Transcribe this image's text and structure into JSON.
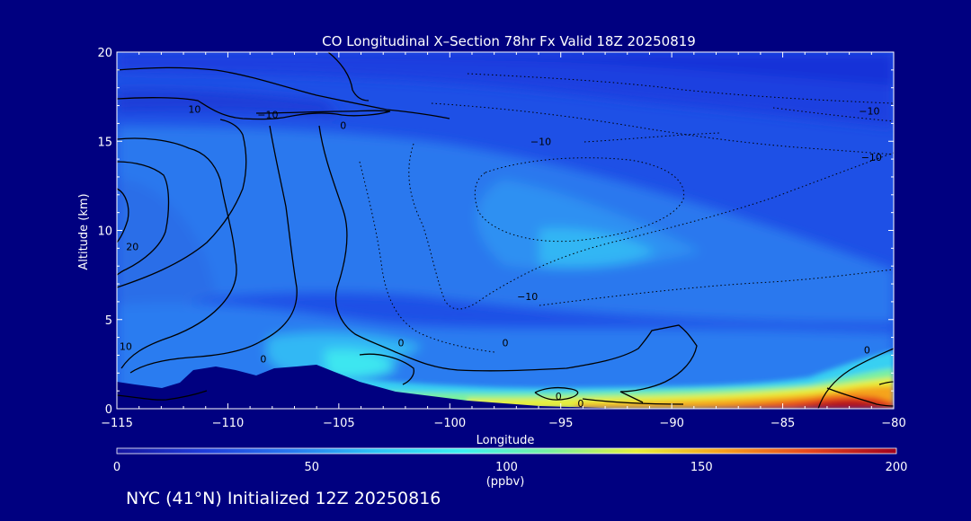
{
  "chart_data": {
    "type": "heatmap",
    "title": "CO Longitudinal X–Section 78hr  Fx Valid 18Z 20250819",
    "xlabel": "Longitude",
    "ylabel": "Altitude (km)",
    "xlim": [
      -115,
      -80
    ],
    "ylim": [
      0,
      20
    ],
    "x_ticks": [
      "−115",
      "−110",
      "−105",
      "−100",
      "−95",
      "−90",
      "−85",
      "−80"
    ],
    "x_tick_values": [
      -115,
      -110,
      -105,
      -100,
      -95,
      -90,
      -85,
      -80
    ],
    "y_ticks": [
      "0",
      "5",
      "10",
      "15",
      "20"
    ],
    "y_tick_values": [
      0,
      5,
      10,
      15,
      20
    ],
    "colorbar": {
      "ticks": [
        "0",
        "50",
        "100",
        "150",
        "200"
      ],
      "tick_values": [
        0,
        50,
        100,
        150,
        200
      ],
      "range": [
        0,
        200
      ],
      "label": "(ppbv)",
      "colors": [
        "#1414a0",
        "#1e3cdc",
        "#2878f0",
        "#2ec4f5",
        "#3cf0f0",
        "#78f0a0",
        "#e6f03c",
        "#f5a01e",
        "#e6461e",
        "#a0001e"
      ]
    },
    "contour_labels": [
      {
        "text": "10",
        "lon": -111.5,
        "alt": 16.8
      },
      {
        "text": "−10",
        "lon": -108.2,
        "alt": 16.5
      },
      {
        "text": "0",
        "lon": -104.8,
        "alt": 15.9
      },
      {
        "text": "−10",
        "lon": -95.9,
        "alt": 15.0
      },
      {
        "text": "−10",
        "lon": -81.0,
        "alt": 14.1
      },
      {
        "text": "−10",
        "lon": -81.1,
        "alt": 16.7
      },
      {
        "text": "20",
        "lon": -114.3,
        "alt": 9.1
      },
      {
        "text": "−10",
        "lon": -96.5,
        "alt": 6.3
      },
      {
        "text": "0",
        "lon": -97.5,
        "alt": 3.7
      },
      {
        "text": "0",
        "lon": -102.2,
        "alt": 3.7
      },
      {
        "text": "10",
        "lon": -114.6,
        "alt": 3.5
      },
      {
        "text": "0",
        "lon": -108.4,
        "alt": 2.8
      },
      {
        "text": "0",
        "lon": -95.1,
        "alt": 0.7
      },
      {
        "text": "0",
        "lon": -94.1,
        "alt": 0.3
      },
      {
        "text": "0",
        "lon": -81.2,
        "alt": 3.3
      }
    ]
  },
  "footer": {
    "caption": "NYC (41°N) Initialized 12Z 20250816"
  }
}
